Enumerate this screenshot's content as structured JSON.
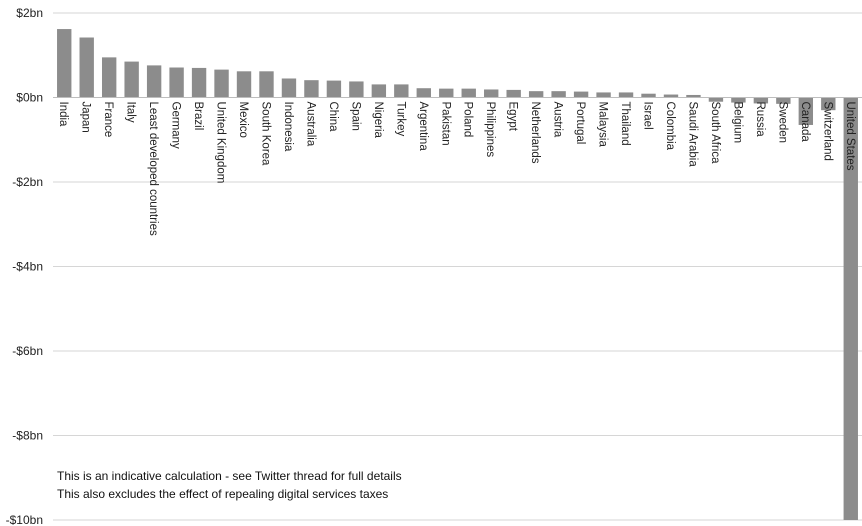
{
  "chart_data": {
    "type": "bar",
    "title": "",
    "xlabel": "",
    "ylabel": "",
    "ylim": [
      -10,
      2
    ],
    "y_ticks": [
      2,
      0,
      -2,
      -4,
      -6,
      -8,
      -10
    ],
    "y_tick_labels": [
      "$2bn",
      "$0bn",
      "-$2bn",
      "-$4bn",
      "-$6bn",
      "-$8bn",
      "-$10bn"
    ],
    "grid": true,
    "bar_color": "#8c8c8c",
    "categories": [
      "India",
      "Japan",
      "France",
      "Italy",
      "Least developed countries",
      "Germany",
      "Brazil",
      "United Kingdom",
      "Mexico",
      "South Korea",
      "Indonesia",
      "Australia",
      "China",
      "Spain",
      "Nigeria",
      "Turkey",
      "Argentina",
      "Pakistan",
      "Poland",
      "Philippines",
      "Egypt",
      "Netherlands",
      "Austria",
      "Portugal",
      "Malaysia",
      "Thailand",
      "Israel",
      "Colombia",
      "Saudi Arabia",
      "South Africa",
      "Belgium",
      "Russia",
      "Sweden",
      "Canada",
      "Switzerland",
      "United States"
    ],
    "values": [
      1.62,
      1.42,
      0.95,
      0.85,
      0.76,
      0.71,
      0.7,
      0.66,
      0.62,
      0.62,
      0.45,
      0.41,
      0.4,
      0.38,
      0.31,
      0.31,
      0.22,
      0.21,
      0.21,
      0.19,
      0.18,
      0.15,
      0.15,
      0.14,
      0.12,
      0.12,
      0.09,
      0.07,
      0.06,
      -0.1,
      -0.12,
      -0.14,
      -0.15,
      -0.65,
      -0.3,
      -10.0
    ]
  },
  "notes": [
    "This is an indicative calculation - see Twitter thread for full details",
    "This also excludes the effect of repealing digital services taxes"
  ]
}
